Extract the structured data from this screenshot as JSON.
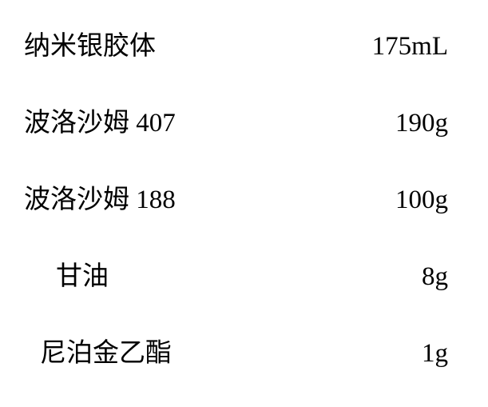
{
  "type": "table",
  "background_color": "#ffffff",
  "text_color": "#000000",
  "font_family": "SimSun",
  "font_size_pt": 24,
  "columns": [
    "name",
    "amount"
  ],
  "rows": [
    {
      "label": "纳米银胶体",
      "value": "175mL",
      "label_indent": 0
    },
    {
      "label": "波洛沙姆 407",
      "value": "190g",
      "label_indent": 0
    },
    {
      "label": "波洛沙姆 188",
      "value": "100g",
      "label_indent": 0
    },
    {
      "label": "甘油",
      "value": "8g",
      "label_indent": 1
    },
    {
      "label": "尼泊金乙酯",
      "value": "1g",
      "label_indent": 2
    }
  ]
}
